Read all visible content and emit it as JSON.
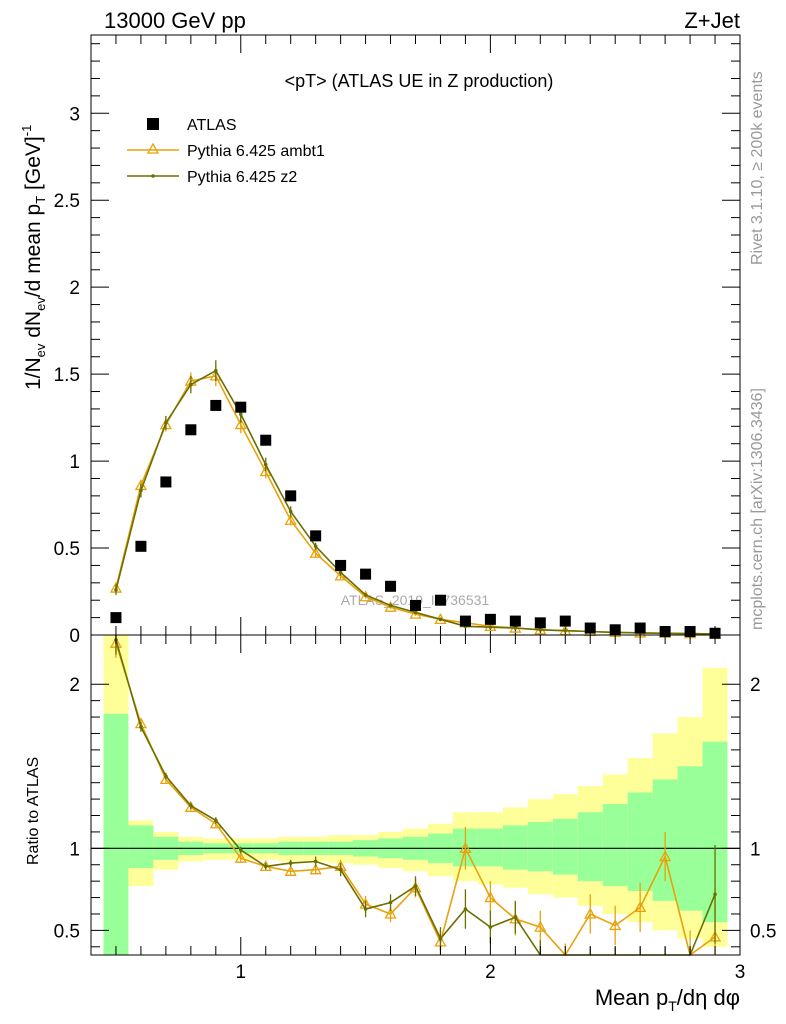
{
  "header": {
    "left": "13000 GeV pp",
    "right": "Z+Jet"
  },
  "side_labels": {
    "rivet": "Rivet 3.1.10, ≥ 200k events",
    "mcplots": "mcplots.cern.ch [arXiv:1306.3436]"
  },
  "watermark": "ATLAS_2019_I1736531",
  "colors": {
    "atlas": "#000000",
    "ambt1": "#e8a20c",
    "z2": "#6b6f00",
    "band_green": "#99ff99",
    "band_yellow": "#ffff99"
  },
  "chart_data": [
    {
      "type": "scatter",
      "title": "<pT> (ATLAS UE in Z production)",
      "ylabel": "1/N_ev dN_ev/d mean p_T [GeV]^-1",
      "xlim": [
        0.4,
        3.0
      ],
      "ylim": [
        0,
        3.45
      ],
      "xticks": [
        1,
        2,
        3
      ],
      "yticks": [
        0,
        0.5,
        1,
        1.5,
        2,
        2.5,
        3
      ],
      "ytick_labels": [
        "0",
        "0.5",
        "1",
        "1.5",
        "2",
        "2.5",
        "3"
      ],
      "legend_position": "top-left",
      "x": [
        0.5,
        0.6,
        0.7,
        0.8,
        0.9,
        1.0,
        1.1,
        1.2,
        1.3,
        1.4,
        1.5,
        1.6,
        1.7,
        1.8,
        1.9,
        2.0,
        2.1,
        2.2,
        2.3,
        2.4,
        2.5,
        2.6,
        2.7,
        2.8,
        2.9
      ],
      "series": [
        {
          "name": "ATLAS",
          "marker": "square",
          "values": [
            0.1,
            0.51,
            0.88,
            1.18,
            1.32,
            1.31,
            1.12,
            0.8,
            0.57,
            0.4,
            0.35,
            0.28,
            0.17,
            0.2,
            0.08,
            0.09,
            0.08,
            0.07,
            0.08,
            0.04,
            0.03,
            0.04,
            0.02,
            0.02,
            0.01
          ]
        },
        {
          "name": "Pythia 6.425 ambt1",
          "marker": "triangle",
          "values": [
            0.27,
            0.86,
            1.21,
            1.46,
            1.49,
            1.21,
            0.94,
            0.66,
            0.47,
            0.34,
            0.22,
            0.16,
            0.12,
            0.09,
            0.07,
            0.05,
            0.04,
            0.03,
            0.025,
            0.02,
            0.015,
            0.012,
            0.01,
            0.008,
            0.005
          ],
          "errors": [
            0.02,
            0.03,
            0.04,
            0.05,
            0.06,
            0.05,
            0.04,
            0.03,
            0.02,
            0.02,
            0.01,
            0.01,
            0.01,
            0.01,
            0.01,
            0.01,
            0.01,
            0.005,
            0.005,
            0.005,
            0.005,
            0.005,
            0.005,
            0.005,
            0.005
          ]
        },
        {
          "name": "Pythia 6.425 z2",
          "marker": "dot",
          "values": [
            0.26,
            0.83,
            1.22,
            1.44,
            1.52,
            1.27,
            0.98,
            0.71,
            0.51,
            0.36,
            0.23,
            0.17,
            0.13,
            0.09,
            0.05,
            0.045,
            0.04,
            0.03,
            0.025,
            0.02,
            0.015,
            0.012,
            0.01,
            0.008,
            0.005
          ],
          "errors": [
            0.03,
            0.04,
            0.04,
            0.05,
            0.06,
            0.05,
            0.04,
            0.03,
            0.02,
            0.02,
            0.01,
            0.01,
            0.01,
            0.01,
            0.01,
            0.01,
            0.01,
            0.005,
            0.005,
            0.005,
            0.005,
            0.005,
            0.005,
            0.005,
            0.005
          ]
        }
      ]
    },
    {
      "type": "line",
      "ylabel": "Ratio to ATLAS",
      "xlabel": "Mean p_T/dη dφ",
      "xlim": [
        0.4,
        3.0
      ],
      "ylim": [
        0.35,
        2.3
      ],
      "xticks": [
        1,
        2,
        3
      ],
      "xtick_labels": [
        "1",
        "2",
        "3"
      ],
      "yticks": [
        0.5,
        1,
        2
      ],
      "ytick_labels": [
        "0.5",
        "1",
        "2"
      ],
      "reference_line": 1,
      "bins": [
        [
          0.45,
          0.55
        ],
        [
          0.55,
          0.65
        ],
        [
          0.65,
          0.75
        ],
        [
          0.75,
          0.85
        ],
        [
          0.85,
          0.95
        ],
        [
          0.95,
          1.05
        ],
        [
          1.05,
          1.15
        ],
        [
          1.15,
          1.25
        ],
        [
          1.25,
          1.35
        ],
        [
          1.35,
          1.45
        ],
        [
          1.45,
          1.55
        ],
        [
          1.55,
          1.65
        ],
        [
          1.65,
          1.75
        ],
        [
          1.75,
          1.85
        ],
        [
          1.85,
          1.95
        ],
        [
          1.95,
          2.05
        ],
        [
          2.05,
          2.15
        ],
        [
          2.15,
          2.25
        ],
        [
          2.25,
          2.35
        ],
        [
          2.35,
          2.45
        ],
        [
          2.45,
          2.55
        ],
        [
          2.55,
          2.65
        ],
        [
          2.65,
          2.75
        ],
        [
          2.75,
          2.85
        ],
        [
          2.85,
          2.95
        ]
      ],
      "band_yellow": [
        [
          0.3,
          2.35
        ],
        [
          0.77,
          1.17
        ],
        [
          0.87,
          1.1
        ],
        [
          0.92,
          1.07
        ],
        [
          0.93,
          1.06
        ],
        [
          0.93,
          1.06
        ],
        [
          0.93,
          1.06
        ],
        [
          0.92,
          1.07
        ],
        [
          0.92,
          1.07
        ],
        [
          0.91,
          1.08
        ],
        [
          0.9,
          1.08
        ],
        [
          0.88,
          1.1
        ],
        [
          0.86,
          1.12
        ],
        [
          0.83,
          1.15
        ],
        [
          0.8,
          1.22
        ],
        [
          0.78,
          1.22
        ],
        [
          0.76,
          1.25
        ],
        [
          0.72,
          1.3
        ],
        [
          0.7,
          1.33
        ],
        [
          0.65,
          1.38
        ],
        [
          0.6,
          1.45
        ],
        [
          0.55,
          1.55
        ],
        [
          0.5,
          1.7
        ],
        [
          0.45,
          1.8
        ],
        [
          0.4,
          2.1
        ]
      ],
      "band_green": [
        [
          0.3,
          1.82
        ],
        [
          0.88,
          1.14
        ],
        [
          0.93,
          1.07
        ],
        [
          0.96,
          1.04
        ],
        [
          0.97,
          1.03
        ],
        [
          0.97,
          1.03
        ],
        [
          0.97,
          1.03
        ],
        [
          0.96,
          1.04
        ],
        [
          0.96,
          1.04
        ],
        [
          0.96,
          1.04
        ],
        [
          0.95,
          1.05
        ],
        [
          0.94,
          1.06
        ],
        [
          0.93,
          1.07
        ],
        [
          0.91,
          1.09
        ],
        [
          0.89,
          1.12
        ],
        [
          0.89,
          1.12
        ],
        [
          0.87,
          1.14
        ],
        [
          0.86,
          1.16
        ],
        [
          0.84,
          1.18
        ],
        [
          0.8,
          1.22
        ],
        [
          0.77,
          1.27
        ],
        [
          0.74,
          1.34
        ],
        [
          0.68,
          1.42
        ],
        [
          0.62,
          1.5
        ],
        [
          0.55,
          1.65
        ]
      ],
      "x": [
        0.5,
        0.6,
        0.7,
        0.8,
        0.9,
        1.0,
        1.1,
        1.2,
        1.3,
        1.4,
        1.5,
        1.6,
        1.7,
        1.8,
        1.9,
        2.0,
        2.1,
        2.2,
        2.3,
        2.4,
        2.5,
        2.6,
        2.7,
        2.8,
        2.9
      ],
      "series": [
        {
          "name": "Pythia 6.425 ambt1",
          "values": [
            2.25,
            1.76,
            1.42,
            1.25,
            1.15,
            0.94,
            0.89,
            0.86,
            0.87,
            0.89,
            0.66,
            0.6,
            0.76,
            0.43,
            1.0,
            0.7,
            0.57,
            0.52,
            0.3,
            0.6,
            0.53,
            0.64,
            0.95,
            0.3,
            0.46
          ],
          "errors": [
            0.09,
            0.03,
            0.02,
            0.02,
            0.02,
            0.02,
            0.02,
            0.02,
            0.03,
            0.04,
            0.05,
            0.05,
            0.06,
            0.07,
            0.13,
            0.1,
            0.1,
            0.1,
            0.12,
            0.12,
            0.12,
            0.15,
            0.15,
            0.2,
            0.3
          ]
        },
        {
          "name": "Pythia 6.425 z2",
          "values": [
            2.27,
            1.74,
            1.44,
            1.26,
            1.17,
            0.99,
            0.89,
            0.91,
            0.92,
            0.87,
            0.63,
            0.67,
            0.77,
            0.45,
            0.63,
            0.52,
            0.58,
            0.34,
            0.25,
            0.3,
            0.3,
            0.3,
            0.3,
            0.3,
            0.72
          ],
          "errors": [
            0.09,
            0.03,
            0.02,
            0.02,
            0.02,
            0.02,
            0.02,
            0.02,
            0.03,
            0.04,
            0.05,
            0.05,
            0.06,
            0.07,
            0.12,
            0.1,
            0.1,
            0.1,
            0.1,
            0.1,
            0.1,
            0.1,
            0.1,
            0.1,
            0.3
          ]
        }
      ]
    }
  ]
}
